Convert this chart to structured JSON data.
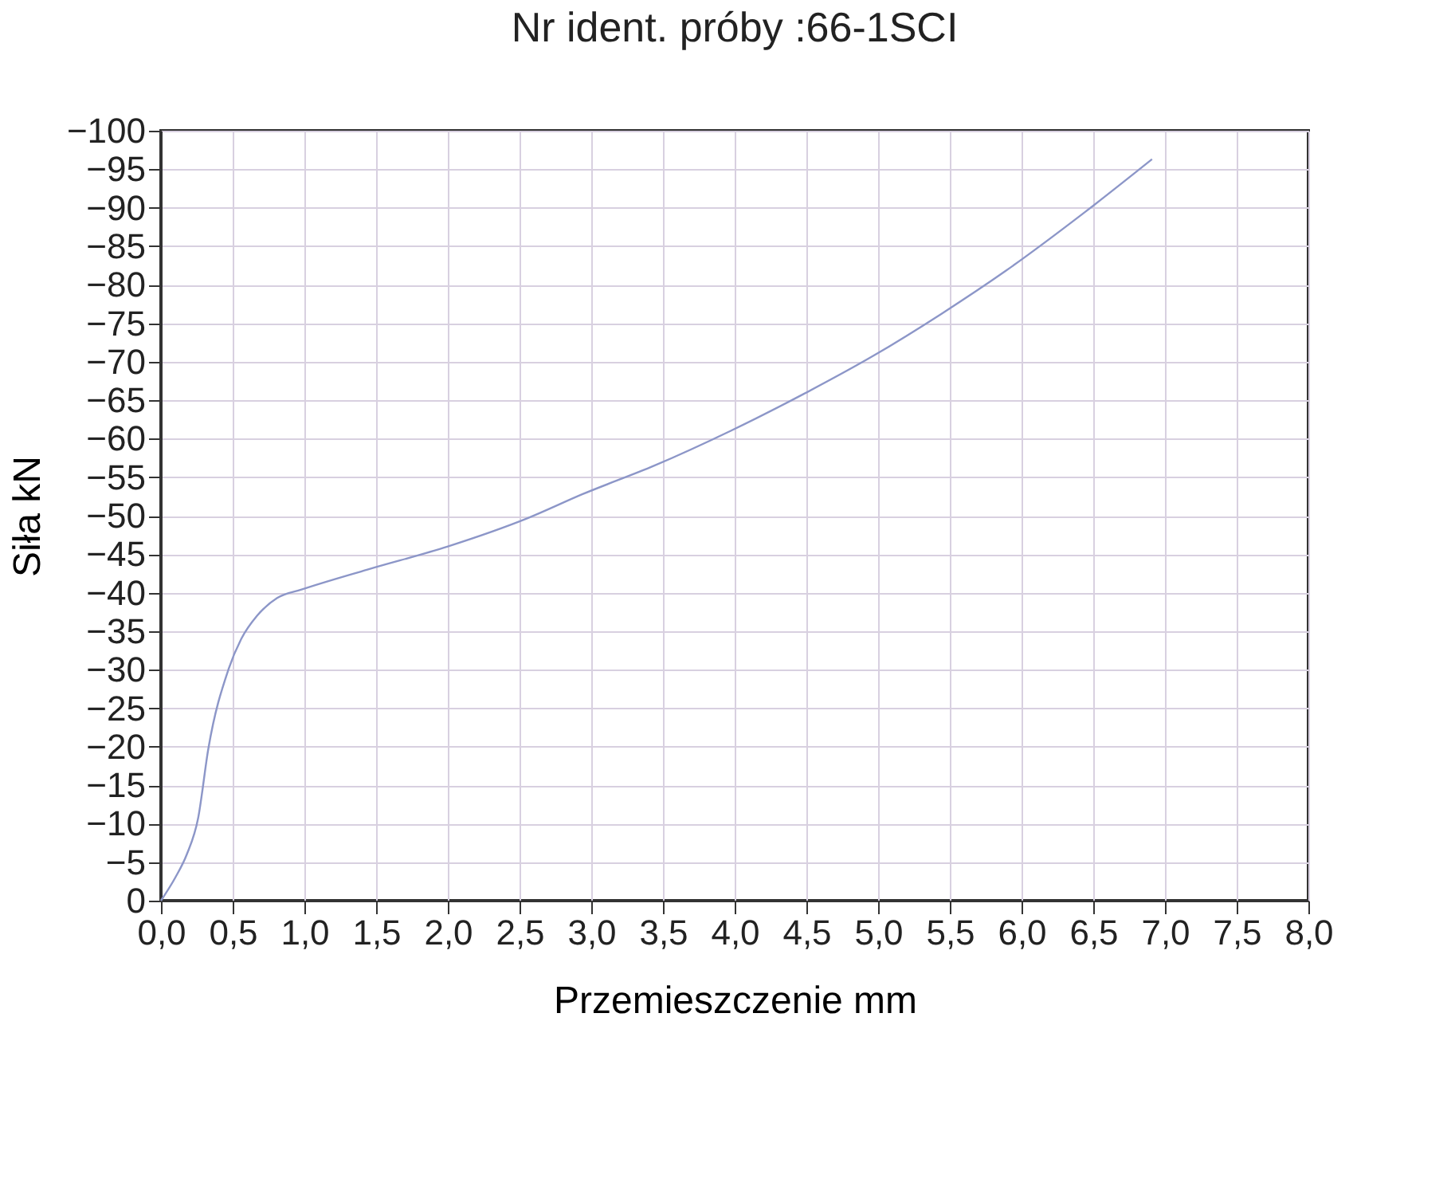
{
  "chart_data": {
    "type": "line",
    "title": "Nr ident. próby :66-1SCI",
    "xlabel": "Przemieszczenie mm",
    "ylabel": "Siła kN",
    "x": [
      0,
      0.1,
      0.18,
      0.26,
      0.33,
      0.47,
      0.56,
      0.67,
      0.81,
      0.98,
      1.44,
      2.0,
      2.56,
      2.94,
      3.44,
      3.97,
      4.48,
      4.97,
      5.44,
      5.89,
      6.44,
      6.91
    ],
    "series": [
      {
        "color": "#8c96c8",
        "values": [
          0,
          -3,
          -6,
          -10.8,
          -19.7,
          -30,
          -34,
          -37,
          -39.3,
          -40.4,
          -43,
          -46,
          -49.7,
          -52.8,
          -56.5,
          -61,
          -65.8,
          -70.8,
          -76.2,
          -81.8,
          -89.4,
          -96.3
        ]
      }
    ],
    "xlim": [
      0,
      8
    ],
    "ylim": [
      0,
      -100
    ],
    "xticks": [
      {
        "value": 0,
        "label": "0,0"
      },
      {
        "value": 0.5,
        "label": "0,5"
      },
      {
        "value": 1,
        "label": "1,0"
      },
      {
        "value": 1.5,
        "label": "1,5"
      },
      {
        "value": 2,
        "label": "2,0"
      },
      {
        "value": 2.5,
        "label": "2,5"
      },
      {
        "value": 3,
        "label": "3,0"
      },
      {
        "value": 3.5,
        "label": "3,5"
      },
      {
        "value": 4,
        "label": "4,0"
      },
      {
        "value": 4.5,
        "label": "4,5"
      },
      {
        "value": 5,
        "label": "5,0"
      },
      {
        "value": 5.5,
        "label": "5,5"
      },
      {
        "value": 6,
        "label": "6,0"
      },
      {
        "value": 6.5,
        "label": "6,5"
      },
      {
        "value": 7,
        "label": "7,0"
      },
      {
        "value": 7.5,
        "label": "7,5"
      },
      {
        "value": 8,
        "label": "8,0"
      }
    ],
    "yticks": [
      0,
      -5,
      -10,
      -15,
      -20,
      -25,
      -30,
      -35,
      -40,
      -45,
      -50,
      -55,
      -60,
      -65,
      -70,
      -75,
      -80,
      -85,
      -90,
      -95,
      -100
    ],
    "grid": true,
    "marker": "none",
    "line_style": "solid"
  }
}
